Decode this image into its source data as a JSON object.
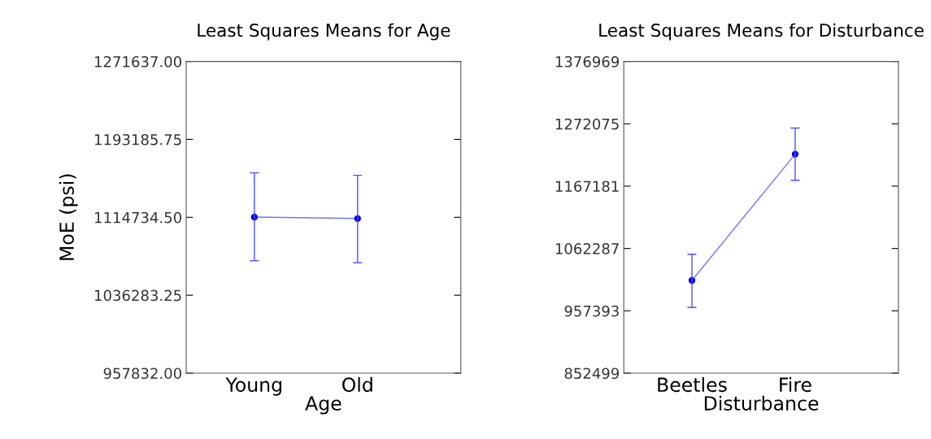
{
  "chart_data": [
    {
      "type": "line",
      "title": "Least Squares Means for Age",
      "xlabel": "Age",
      "ylabel": "MoE (psi)",
      "categories": [
        "Young",
        "Old"
      ],
      "series": [
        {
          "color": "#5050ff",
          "values": [
            1115000,
            1113500
          ],
          "errors": [
            [
              1071000,
              1159500
            ],
            [
              1069000,
              1157000
            ]
          ]
        }
      ],
      "marker": "circle",
      "grid": false,
      "legend": false,
      "ylim": [
        957832,
        1271637
      ],
      "yticks": [
        {
          "value": 957832,
          "label": "957832.00"
        },
        {
          "value": 1036283.25,
          "label": "1036283.25"
        },
        {
          "value": 1114734.5,
          "label": "1114734.50"
        },
        {
          "value": 1193185.75,
          "label": "1193185.75"
        },
        {
          "value": 1271637,
          "label": "1271637.00"
        }
      ]
    },
    {
      "type": "line",
      "title": "Least Squares Means for Disturbance",
      "xlabel": "Disturbance",
      "categories": [
        "Beetles",
        "Fire"
      ],
      "series": [
        {
          "color": "#5050ff",
          "values": [
            1008500,
            1221000
          ],
          "errors": [
            [
              963000,
              1052500
            ],
            [
              1177000,
              1265000
            ]
          ]
        }
      ],
      "marker": "circle",
      "grid": false,
      "legend": false,
      "ylim": [
        852499,
        1376969
      ],
      "yticks": [
        852499,
        957393,
        1062287,
        1167181,
        1272075,
        1376969
      ]
    }
  ]
}
